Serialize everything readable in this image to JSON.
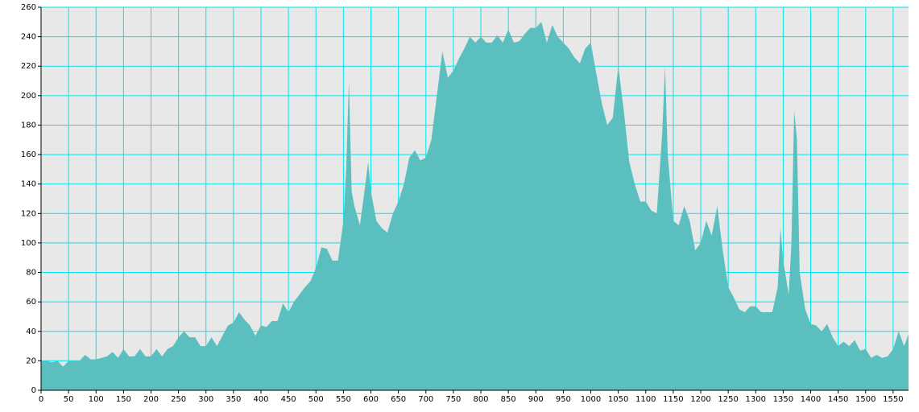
{
  "chart_data": {
    "type": "area",
    "x": [
      0,
      10,
      20,
      30,
      40,
      50,
      60,
      70,
      80,
      90,
      100,
      110,
      120,
      130,
      140,
      150,
      160,
      170,
      180,
      190,
      200,
      210,
      220,
      230,
      240,
      250,
      260,
      270,
      280,
      290,
      300,
      310,
      320,
      330,
      340,
      350,
      360,
      370,
      380,
      390,
      400,
      410,
      420,
      430,
      440,
      450,
      460,
      470,
      480,
      490,
      500,
      510,
      520,
      530,
      540,
      550,
      555,
      560,
      565,
      570,
      580,
      590,
      595,
      600,
      610,
      620,
      630,
      640,
      650,
      660,
      670,
      680,
      690,
      700,
      710,
      720,
      730,
      740,
      750,
      760,
      770,
      780,
      790,
      800,
      810,
      820,
      830,
      840,
      850,
      860,
      870,
      880,
      890,
      900,
      910,
      920,
      930,
      940,
      950,
      960,
      970,
      980,
      990,
      1000,
      1010,
      1020,
      1030,
      1040,
      1050,
      1060,
      1070,
      1080,
      1090,
      1100,
      1110,
      1120,
      1130,
      1135,
      1140,
      1150,
      1160,
      1170,
      1180,
      1190,
      1200,
      1210,
      1220,
      1230,
      1240,
      1250,
      1260,
      1270,
      1280,
      1290,
      1300,
      1310,
      1320,
      1330,
      1340,
      1345,
      1350,
      1360,
      1365,
      1370,
      1375,
      1380,
      1390,
      1400,
      1410,
      1420,
      1430,
      1440,
      1450,
      1460,
      1470,
      1480,
      1490,
      1500,
      1510,
      1520,
      1530,
      1540,
      1550,
      1560,
      1570,
      1578
    ],
    "values": [
      20,
      20,
      19,
      20,
      16,
      20,
      20,
      20,
      24,
      21,
      21,
      22,
      23,
      26,
      22,
      28,
      23,
      23,
      28,
      23,
      23,
      28,
      23,
      28,
      30,
      36,
      40,
      36,
      36,
      30,
      30,
      36,
      30,
      37,
      44,
      46,
      53,
      48,
      44,
      37,
      44,
      43,
      47,
      47,
      59,
      53,
      60,
      65,
      70,
      74,
      83,
      97,
      96,
      88,
      88,
      115,
      150,
      210,
      135,
      125,
      112,
      140,
      155,
      135,
      115,
      110,
      107,
      120,
      128,
      140,
      158,
      163,
      156,
      158,
      170,
      200,
      230,
      212,
      217,
      225,
      232,
      240,
      236,
      240,
      236,
      236,
      241,
      236,
      245,
      236,
      237,
      242,
      246,
      246,
      250,
      236,
      248,
      240,
      236,
      232,
      226,
      222,
      232,
      236,
      215,
      195,
      180,
      185,
      220,
      190,
      155,
      140,
      128,
      128,
      122,
      120,
      175,
      220,
      160,
      115,
      112,
      125,
      115,
      95,
      100,
      115,
      105,
      125,
      95,
      70,
      63,
      55,
      53,
      57,
      57,
      53,
      53,
      53,
      70,
      110,
      88,
      65,
      100,
      190,
      170,
      80,
      55,
      45,
      44,
      40,
      45,
      36,
      30,
      33,
      30,
      34,
      27,
      28,
      22,
      24,
      22,
      23,
      28,
      40,
      30,
      38
    ],
    "color": "#5bbfbf",
    "xlim": [
      0,
      1578
    ],
    "xticks": [
      0,
      50,
      100,
      150,
      200,
      250,
      300,
      350,
      400,
      450,
      500,
      550,
      600,
      650,
      700,
      750,
      800,
      850,
      900,
      950,
      1000,
      1050,
      1100,
      1150,
      1200,
      1250,
      1300,
      1350,
      1400,
      1450,
      1500,
      1550
    ],
    "ylim": [
      0,
      260
    ],
    "yticks": [
      0,
      20,
      40,
      60,
      80,
      100,
      120,
      140,
      160,
      180,
      200,
      220,
      240,
      260
    ],
    "grid": true
  }
}
